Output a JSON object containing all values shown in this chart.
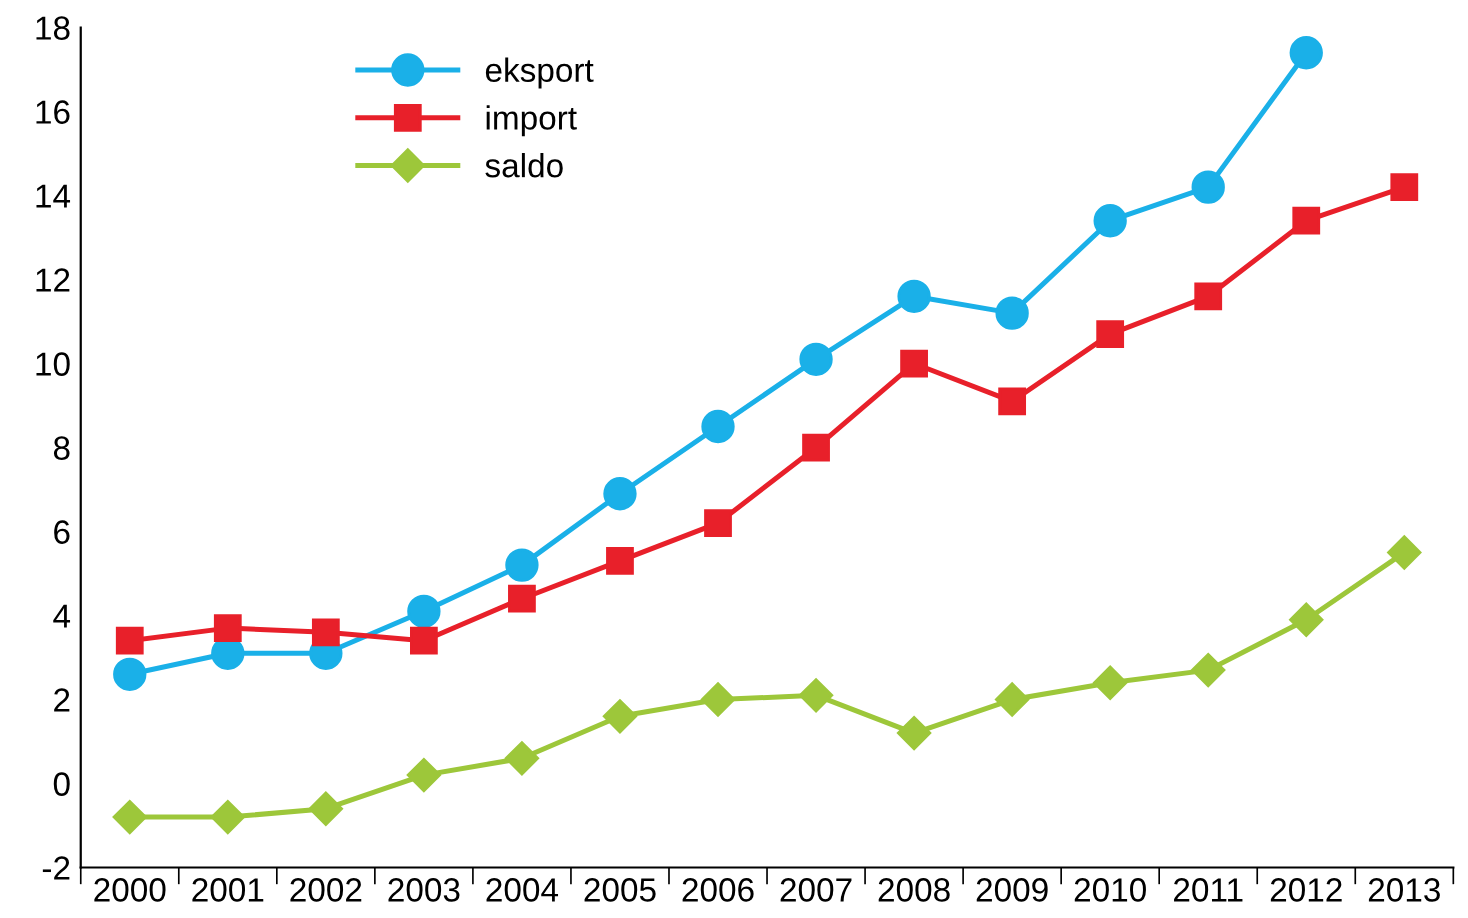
{
  "chart_data": {
    "type": "line",
    "categories": [
      "2000",
      "2001",
      "2002",
      "2003",
      "2004",
      "2005",
      "2006",
      "2007",
      "2008",
      "2009",
      "2010",
      "2011",
      "2012",
      "2013"
    ],
    "series": [
      {
        "name": "eksport",
        "color": "#1ab0e8",
        "marker": "circle",
        "values": [
          2.6,
          3.1,
          3.1,
          4.1,
          5.2,
          6.9,
          8.5,
          10.1,
          11.6,
          11.2,
          13.4,
          14.2,
          17.4,
          null
        ]
      },
      {
        "name": "import",
        "color": "#e8202a",
        "marker": "square",
        "values": [
          3.4,
          3.7,
          3.6,
          3.4,
          4.4,
          5.3,
          6.2,
          8.0,
          10.0,
          9.1,
          10.7,
          11.6,
          13.4,
          14.2
        ]
      },
      {
        "name": "saldo",
        "color": "#9dc73a",
        "marker": "diamond",
        "values": [
          -0.8,
          -0.8,
          -0.6,
          0.2,
          0.6,
          1.6,
          2.0,
          2.1,
          1.2,
          2.0,
          2.4,
          2.7,
          3.9,
          5.5
        ]
      }
    ],
    "ylim": [
      -2,
      18
    ],
    "yticks": [
      -2,
      0,
      2,
      4,
      6,
      8,
      10,
      12,
      14,
      16,
      18
    ],
    "grid": false,
    "legend": "top left",
    "line_style": "solid"
  }
}
